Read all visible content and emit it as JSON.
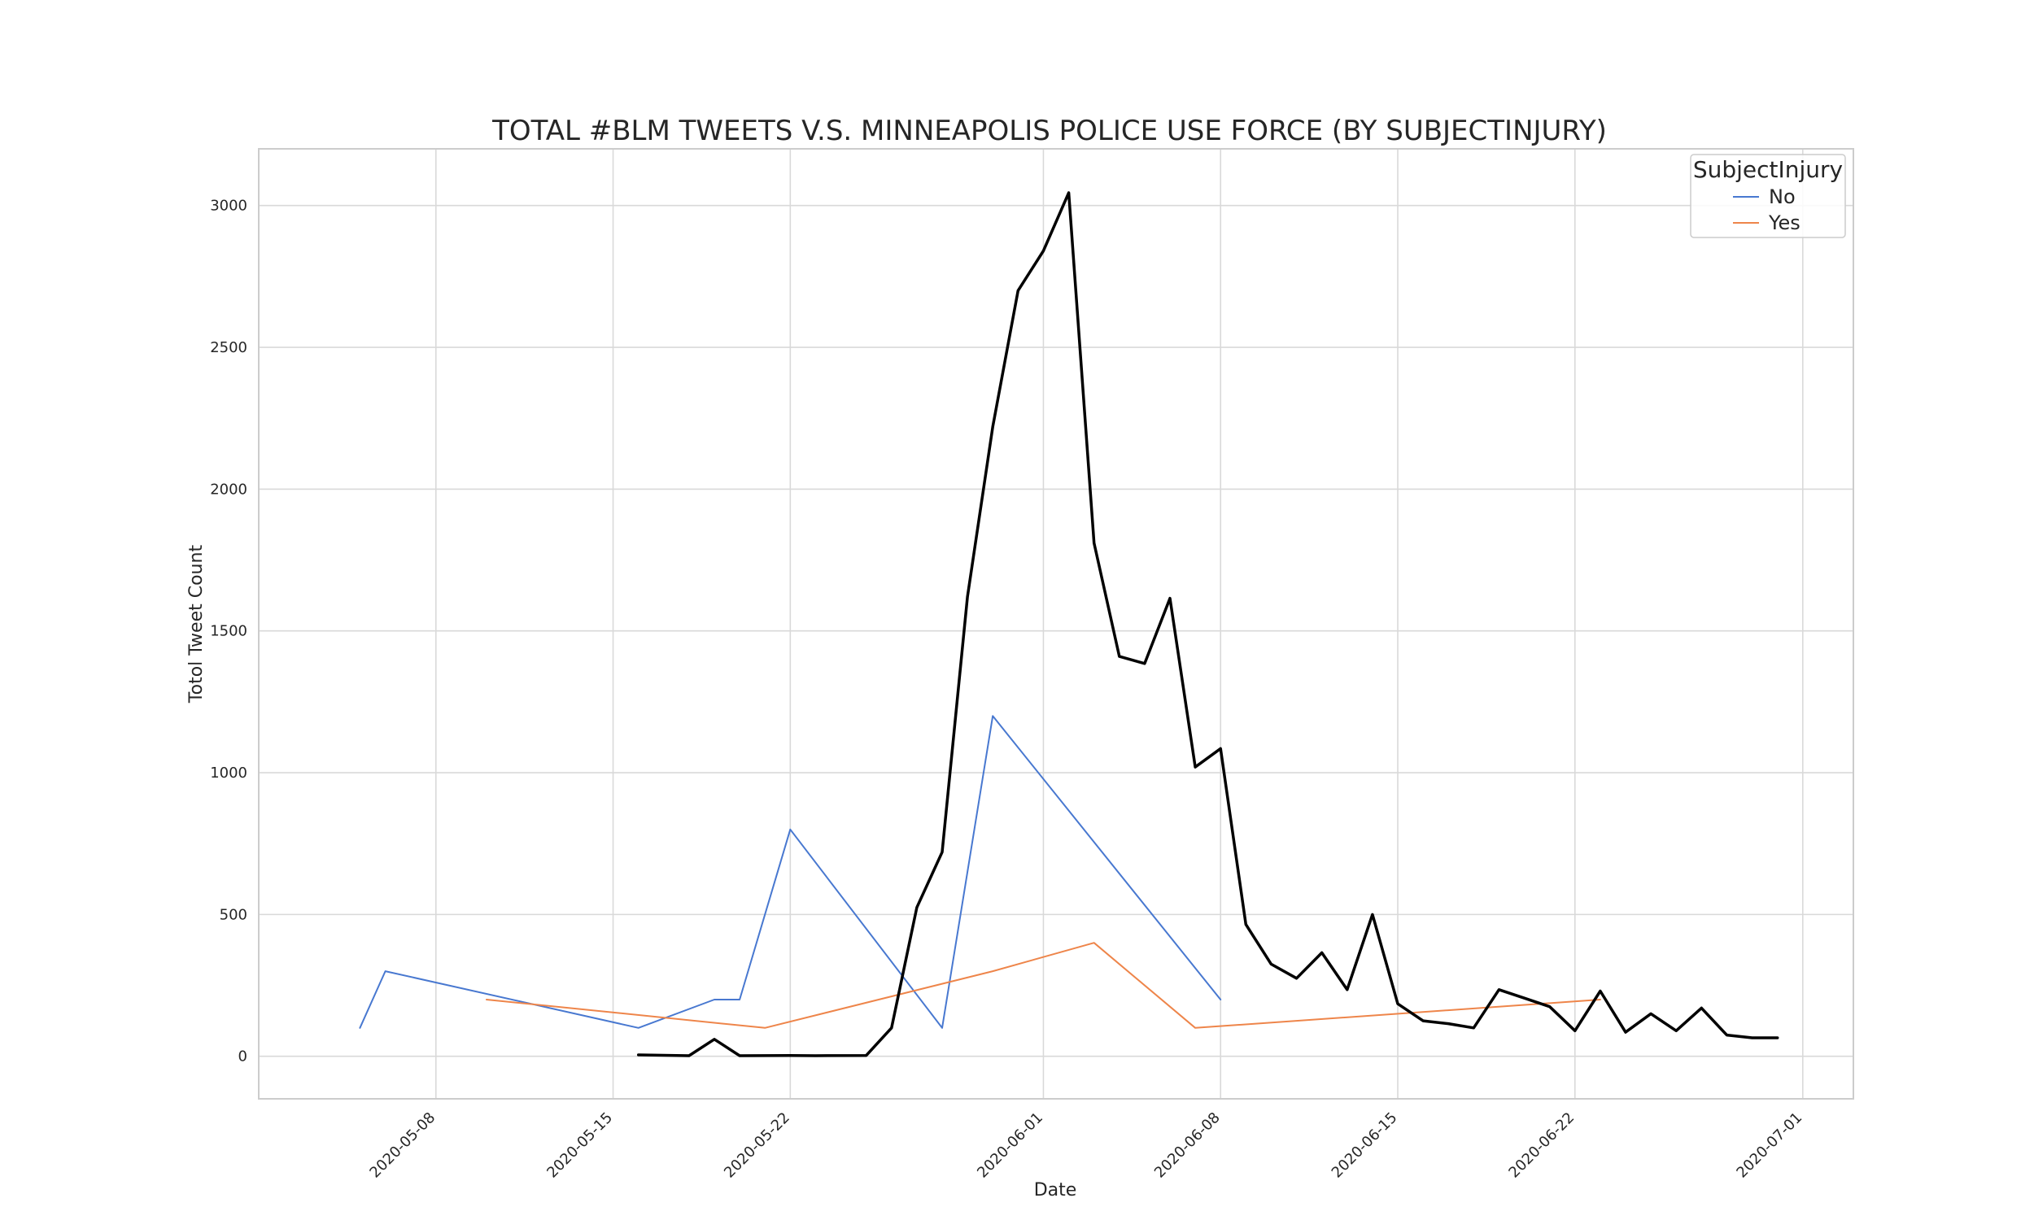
{
  "chart_data": {
    "type": "line",
    "title": "TOTAL #BLM TWEETS V.S. MINNEAPOLIS POLICE USE FORCE (BY SUBJECTINJURY)",
    "xlabel": "Date",
    "ylabel": "Totol Tweet Count",
    "xlim": [
      "2020-05-01",
      "2020-07-03"
    ],
    "ylim": [
      -150,
      3200
    ],
    "x_ticks": [
      "2020-05-08",
      "2020-05-15",
      "2020-05-22",
      "2020-06-01",
      "2020-06-08",
      "2020-06-15",
      "2020-06-22",
      "2020-07-01"
    ],
    "y_ticks": [
      0,
      500,
      1000,
      1500,
      2000,
      2500,
      3000
    ],
    "grid": true,
    "legend": {
      "title": "SubjectInjury",
      "placement": "top-right",
      "entries": [
        "No",
        "Yes"
      ]
    },
    "series": [
      {
        "name": "No",
        "color": "#4878d0",
        "points": [
          [
            "2020-05-05",
            100
          ],
          [
            "2020-05-06",
            300
          ],
          [
            "2020-05-16",
            100
          ],
          [
            "2020-05-19",
            200
          ],
          [
            "2020-05-20",
            200
          ],
          [
            "2020-05-22",
            800
          ],
          [
            "2020-05-28",
            100
          ],
          [
            "2020-05-30",
            1200
          ],
          [
            "2020-06-08",
            200
          ]
        ]
      },
      {
        "name": "Yes",
        "color": "#ee854a",
        "points": [
          [
            "2020-05-10",
            200
          ],
          [
            "2020-05-21",
            100
          ],
          [
            "2020-05-30",
            300
          ],
          [
            "2020-06-03",
            400
          ],
          [
            "2020-06-07",
            100
          ],
          [
            "2020-06-23",
            200
          ]
        ]
      },
      {
        "color": "#000000",
        "points": [
          [
            "2020-05-16",
            5
          ],
          [
            "2020-05-18",
            2
          ],
          [
            "2020-05-19",
            60
          ],
          [
            "2020-05-20",
            2
          ],
          [
            "2020-05-22",
            3
          ],
          [
            "2020-05-23",
            2
          ],
          [
            "2020-05-25",
            3
          ],
          [
            "2020-05-26",
            100
          ],
          [
            "2020-05-27",
            525
          ],
          [
            "2020-05-28",
            720
          ],
          [
            "2020-05-29",
            1620
          ],
          [
            "2020-05-30",
            2220
          ],
          [
            "2020-05-31",
            2700
          ],
          [
            "2020-06-01",
            2840
          ],
          [
            "2020-06-02",
            3045
          ],
          [
            "2020-06-03",
            1810
          ],
          [
            "2020-06-04",
            1410
          ],
          [
            "2020-06-05",
            1385
          ],
          [
            "2020-06-06",
            1615
          ],
          [
            "2020-06-07",
            1020
          ],
          [
            "2020-06-08",
            1085
          ],
          [
            "2020-06-09",
            465
          ],
          [
            "2020-06-10",
            325
          ],
          [
            "2020-06-11",
            275
          ],
          [
            "2020-06-12",
            365
          ],
          [
            "2020-06-13",
            235
          ],
          [
            "2020-06-14",
            500
          ],
          [
            "2020-06-15",
            185
          ],
          [
            "2020-06-16",
            125
          ],
          [
            "2020-06-17",
            115
          ],
          [
            "2020-06-18",
            100
          ],
          [
            "2020-06-19",
            235
          ],
          [
            "2020-06-20",
            205
          ],
          [
            "2020-06-21",
            175
          ],
          [
            "2020-06-22",
            90
          ],
          [
            "2020-06-23",
            230
          ],
          [
            "2020-06-24",
            85
          ],
          [
            "2020-06-25",
            150
          ],
          [
            "2020-06-26",
            90
          ],
          [
            "2020-06-27",
            170
          ],
          [
            "2020-06-28",
            75
          ],
          [
            "2020-06-29",
            65
          ],
          [
            "2020-06-30",
            65
          ]
        ]
      }
    ]
  }
}
